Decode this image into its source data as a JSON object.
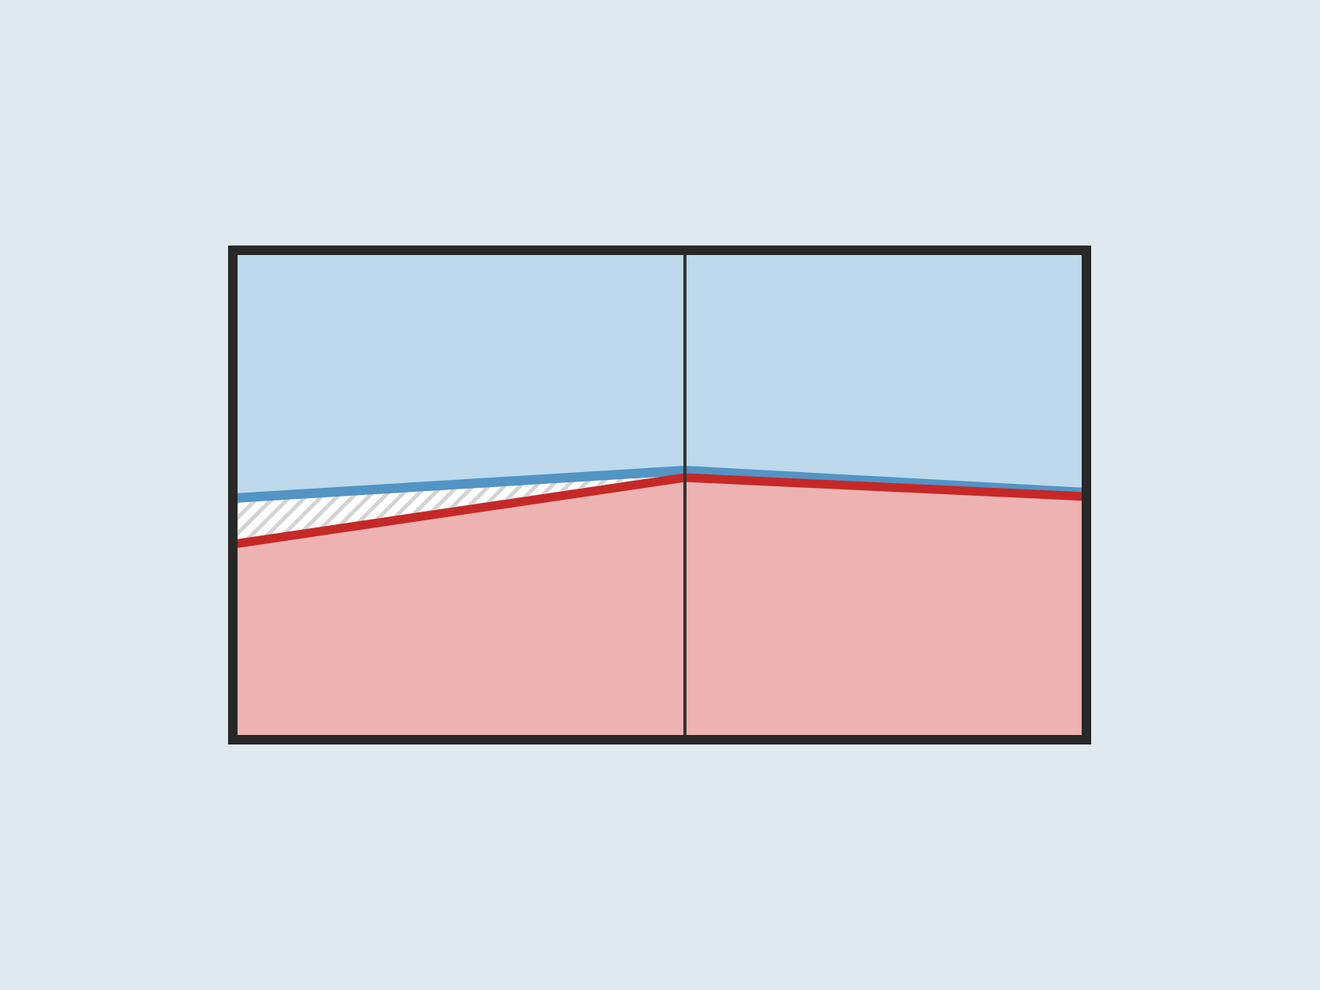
{
  "colors": {
    "page_background": "#e0e8f0",
    "upper_region_fill": "#bdd9eb",
    "lower_region_fill": "#edb3b2",
    "upper_boundary_line": "#5294c4",
    "lower_boundary_line": "#c62828",
    "gap_hatch_background": "#ffffff",
    "gap_hatch_stripe": "#d4d4d4",
    "frame": "#282828",
    "divider": "#333333"
  },
  "regions": {
    "upper": {
      "name": "upper-region",
      "color_key": "upper_region_fill"
    },
    "lower": {
      "name": "lower-region",
      "color_key": "lower_region_fill"
    },
    "gap": {
      "name": "hatched-gap-region",
      "pattern": "diagonal-hatch"
    }
  },
  "boundaries": {
    "upper": {
      "name": "upper-boundary-line",
      "color_key": "upper_boundary_line"
    },
    "lower": {
      "name": "lower-boundary-line",
      "color_key": "lower_boundary_line"
    }
  },
  "panels": {
    "count": 2,
    "divider": {
      "name": "panel-divider",
      "style": "vertical-line"
    }
  }
}
